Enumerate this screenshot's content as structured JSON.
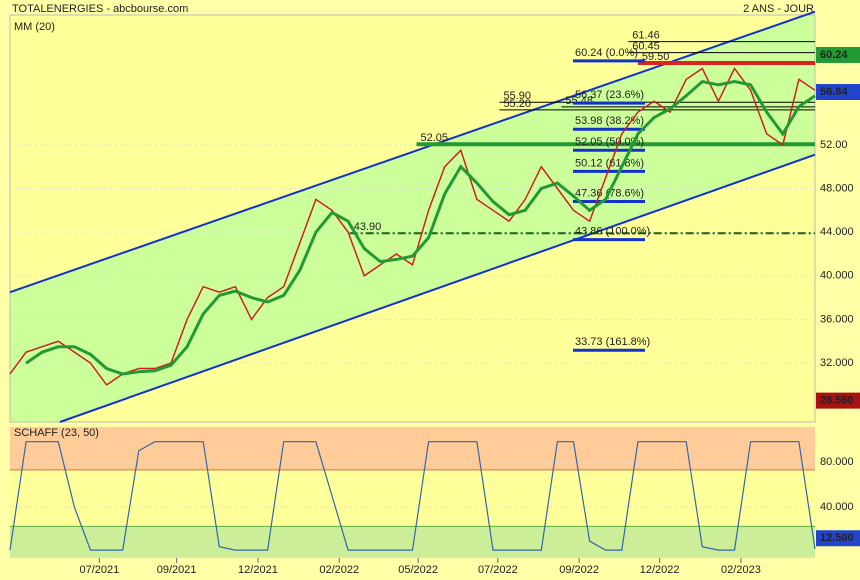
{
  "chart_data": [
    {
      "type": "line",
      "title": "TOTALENERGIES - abcbourse.com",
      "subtitle": "2 ANS - JOUR",
      "x": [
        0,
        2,
        4,
        6,
        8,
        10,
        12,
        14,
        16,
        18,
        20,
        22,
        24,
        26,
        28,
        30,
        32,
        34,
        36,
        38,
        40,
        42,
        44,
        46,
        48,
        50,
        52,
        54,
        56,
        58,
        60,
        62,
        64,
        66,
        68,
        70,
        72,
        74,
        76,
        78,
        80,
        82,
        84,
        86,
        88,
        90,
        92,
        94,
        96,
        98,
        100
      ],
      "xlim": [
        0,
        100
      ],
      "xticks": [
        {
          "value": 11.1,
          "label": "07/2021"
        },
        {
          "value": 20.7,
          "label": "09/2021"
        },
        {
          "value": 30.8,
          "label": "12/2021"
        },
        {
          "value": 40.9,
          "label": "02/2022"
        },
        {
          "value": 50.7,
          "label": "05/2022"
        },
        {
          "value": 60.6,
          "label": "07/2022"
        },
        {
          "value": 70.7,
          "label": "09/2022"
        },
        {
          "value": 80.7,
          "label": "12/2022"
        },
        {
          "value": 90.8,
          "label": "02/2023"
        }
      ],
      "ylim": [
        26.6,
        63.9
      ],
      "yticks": [
        {
          "value": 32,
          "label": "32.000"
        },
        {
          "value": 36,
          "label": "36.000"
        },
        {
          "value": 40,
          "label": "40.000"
        },
        {
          "value": 44,
          "label": "44.000"
        },
        {
          "value": 48,
          "label": "48.000"
        },
        {
          "value": 52,
          "label": "52.00"
        }
      ],
      "series": [
        {
          "color": "#cc2222",
          "values": [
            31,
            33,
            33.5,
            34,
            33,
            32,
            30,
            31,
            31.5,
            31.5,
            32,
            36,
            39,
            38.5,
            39,
            36,
            38,
            39,
            43,
            47,
            46,
            44,
            40,
            41,
            42,
            41,
            46,
            50,
            51.5,
            47,
            46,
            45,
            47,
            50,
            48,
            46,
            45,
            49,
            53,
            55,
            56,
            55,
            58,
            59,
            56,
            59,
            57,
            53,
            52,
            58,
            57
          ]
        },
        {
          "name": "MM (20)",
          "color": "#229933",
          "values": [
            null,
            32,
            33,
            33.5,
            33.5,
            32.8,
            31.5,
            31,
            31.2,
            31.3,
            31.8,
            33.5,
            36.5,
            38.2,
            38.6,
            38,
            37.6,
            38.2,
            40.5,
            44,
            45.8,
            45,
            42.5,
            41.3,
            41.5,
            41.8,
            43.5,
            47.5,
            50,
            48.5,
            46.8,
            45.6,
            46,
            48,
            48.5,
            47.3,
            46,
            47,
            50,
            53,
            54.5,
            55.3,
            56.5,
            57.8,
            57.5,
            57.8,
            57.5,
            55,
            53,
            55.5,
            56.5
          ]
        }
      ],
      "channel": [
        {
          "from": [
            0,
            38.5
          ],
          "to": [
            100,
            64.2
          ]
        },
        {
          "from": [
            6.2,
            26.6
          ],
          "to": [
            100,
            51.1
          ]
        }
      ],
      "levels": [
        {
          "value": 52.05,
          "label": "52.05",
          "from": 50.5,
          "color": "#229933"
        },
        {
          "value": 43.9,
          "label": "43.90",
          "from": 42.2,
          "color": "#116611"
        },
        {
          "value": 61.46,
          "label": "61.46",
          "from": 76.8,
          "color": "#000000"
        },
        {
          "value": 60.45,
          "label": "60.45",
          "from": 76.8,
          "color": "#000000"
        },
        {
          "value": 59.5,
          "label": "59.50",
          "from": 78,
          "color": "#dd2222"
        },
        {
          "value": 55.9,
          "label": "55.90",
          "from": 60.8,
          "color": "#000000"
        },
        {
          "value": 55.2,
          "label": "55.20",
          "from": 60.8,
          "color": "#000000"
        },
        {
          "value": 55.48,
          "label": "55.48",
          "from": 68.5,
          "color": "#000000"
        }
      ],
      "fibonacci": [
        {
          "value": 60.24,
          "label": "60.24 (0.0%)"
        },
        {
          "value": 56.37,
          "label": "56.37 (23.6%)"
        },
        {
          "value": 53.98,
          "label": "53.98 (38.2%)"
        },
        {
          "value": 52.05,
          "label": "52.05 (50.0%)"
        },
        {
          "value": 50.12,
          "label": "50.12 (61.8%)"
        },
        {
          "value": 47.36,
          "label": "47.36 (78.6%)"
        },
        {
          "value": 43.86,
          "label": "43.86 (100.0%)"
        },
        {
          "value": 33.73,
          "label": "33.73 (161.8%)"
        }
      ],
      "price_tags": [
        {
          "value": 60.24,
          "color": "#229933"
        },
        {
          "value": 56.84,
          "color": "#2244cc"
        },
        {
          "value": 28.56,
          "label": "28.560",
          "color": "#aa1111"
        }
      ]
    },
    {
      "type": "line",
      "xlim": [
        0,
        100
      ],
      "ylim": [
        -5,
        111
      ],
      "yticks": [
        {
          "value": 80,
          "label": "80.000"
        },
        {
          "value": 40,
          "label": "40.000"
        }
      ],
      "zones": [
        23,
        73
      ],
      "series": [
        {
          "name": "SCHAFF (23, 50)",
          "color": "#3366aa",
          "values": [
            2,
            98,
            98,
            98,
            40,
            2,
            2,
            2,
            90,
            98,
            98,
            98,
            98,
            5,
            2,
            2,
            2,
            98,
            98,
            98,
            50,
            2,
            2,
            2,
            2,
            2,
            98,
            98,
            98,
            98,
            2,
            2,
            2,
            2,
            98,
            98,
            10,
            2,
            2,
            98,
            98,
            98,
            98,
            5,
            2,
            2,
            98,
            98,
            98,
            98,
            3
          ]
        }
      ],
      "price_tags": [
        {
          "value": 12.5,
          "label": "12.500",
          "color": "#2244cc"
        }
      ]
    }
  ]
}
